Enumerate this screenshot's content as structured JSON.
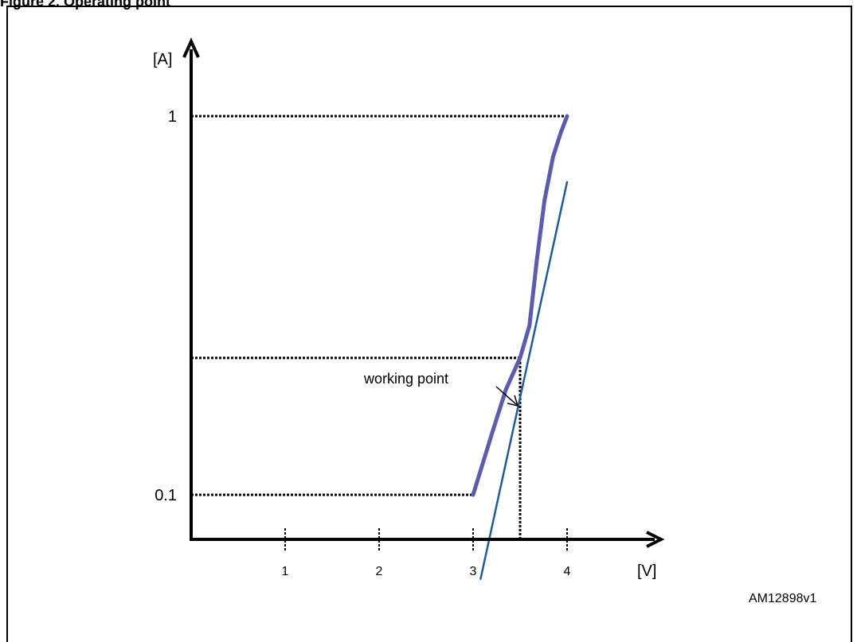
{
  "figure": {
    "caption": "Figure 2. Operating point",
    "id_label": "AM12898v1"
  },
  "chart_data": {
    "type": "line",
    "title": "",
    "xlabel": "[V]",
    "ylabel": "[A]",
    "x_ticks": [
      "1",
      "2",
      "3",
      "4"
    ],
    "y_ticks": [
      "1",
      "0.1"
    ],
    "series": [
      {
        "color": "#5b5bb0",
        "points": [
          [
            3.0,
            0.1
          ],
          [
            3.2,
            0.145
          ],
          [
            3.35,
            0.19
          ],
          [
            3.5,
            0.23
          ],
          [
            3.6,
            0.28
          ],
          [
            3.68,
            0.42
          ],
          [
            3.76,
            0.6
          ],
          [
            3.85,
            0.78
          ],
          [
            3.93,
            0.9
          ],
          [
            4.0,
            1.0
          ]
        ]
      },
      {
        "color": "#1f5c99",
        "points": [
          [
            3.08,
            0.06
          ],
          [
            4.0,
            0.67
          ]
        ]
      }
    ],
    "working_point": {
      "x": 3.5,
      "y": 0.23,
      "label": "working point"
    },
    "reference_lines": [
      {
        "from": [
          0,
          1.0
        ],
        "to": [
          4.0,
          1.0
        ]
      },
      {
        "from": [
          0,
          0.1
        ],
        "to": [
          3.0,
          0.1
        ]
      },
      {
        "from": [
          0,
          0.23
        ],
        "to": [
          3.5,
          0.23
        ]
      },
      {
        "from": [
          3.5,
          0.23
        ],
        "to": [
          3.5,
          0
        ]
      }
    ],
    "grid": false,
    "legend": "none"
  }
}
